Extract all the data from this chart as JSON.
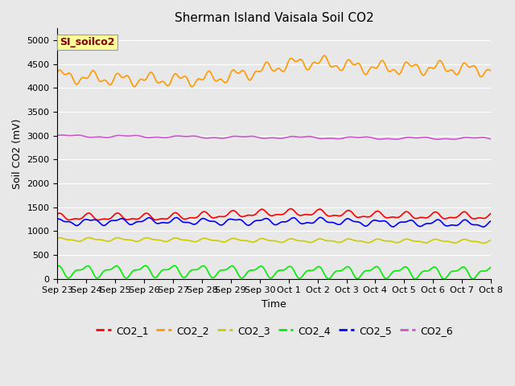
{
  "title": "Sherman Island Vaisala Soil CO2",
  "ylabel": "Soil CO2 (mV)",
  "xlabel": "Time",
  "ylim": [
    0,
    5250
  ],
  "yticks": [
    0,
    500,
    1000,
    1500,
    2000,
    2500,
    3000,
    3500,
    4000,
    4500,
    5000
  ],
  "xtick_labels": [
    "Sep 23",
    "Sep 24",
    "Sep 25",
    "Sep 26",
    "Sep 27",
    "Sep 28",
    "Sep 29",
    "Sep 30",
    "Oct 1",
    "Oct 2",
    "Oct 3",
    "Oct 4",
    "Oct 5",
    "Oct 6",
    "Oct 7",
    "Oct 8"
  ],
  "annotation_text": "SI_soilco2",
  "annotation_bg": "#ffff99",
  "annotation_text_color": "#800000",
  "plot_bg_color": "#e8e8e8",
  "fig_bg_color": "#e8e8e8",
  "colors": {
    "CO2_1": "#ff0000",
    "CO2_2": "#ff9900",
    "CO2_3": "#cccc00",
    "CO2_4": "#00ee00",
    "CO2_5": "#0000ff",
    "CO2_6": "#cc55cc"
  },
  "linewidth": 1.2,
  "title_fontsize": 11,
  "label_fontsize": 9,
  "tick_fontsize": 8,
  "legend_fontsize": 9
}
